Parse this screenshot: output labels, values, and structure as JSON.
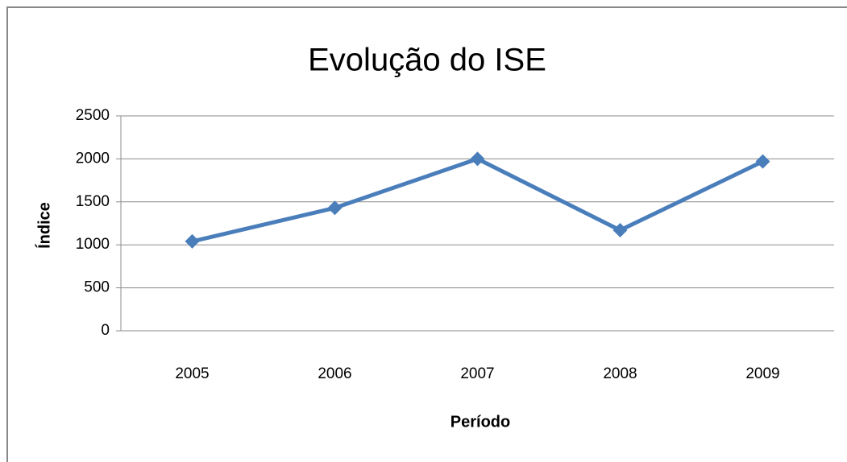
{
  "chart_data": {
    "type": "line",
    "title": "Evolução do ISE",
    "x_label": "Período",
    "y_label": "Índice",
    "categories": [
      "2005",
      "2006",
      "2007",
      "2008",
      "2009"
    ],
    "series": [
      {
        "name": "ISE",
        "color": "#4a7ebb",
        "values": [
          1040,
          1430,
          2000,
          1170,
          1970
        ]
      }
    ],
    "ylim": [
      0,
      2500
    ],
    "yticks": [
      0,
      500,
      1000,
      1500,
      2000,
      2500
    ],
    "grid": true,
    "legend": false
  }
}
